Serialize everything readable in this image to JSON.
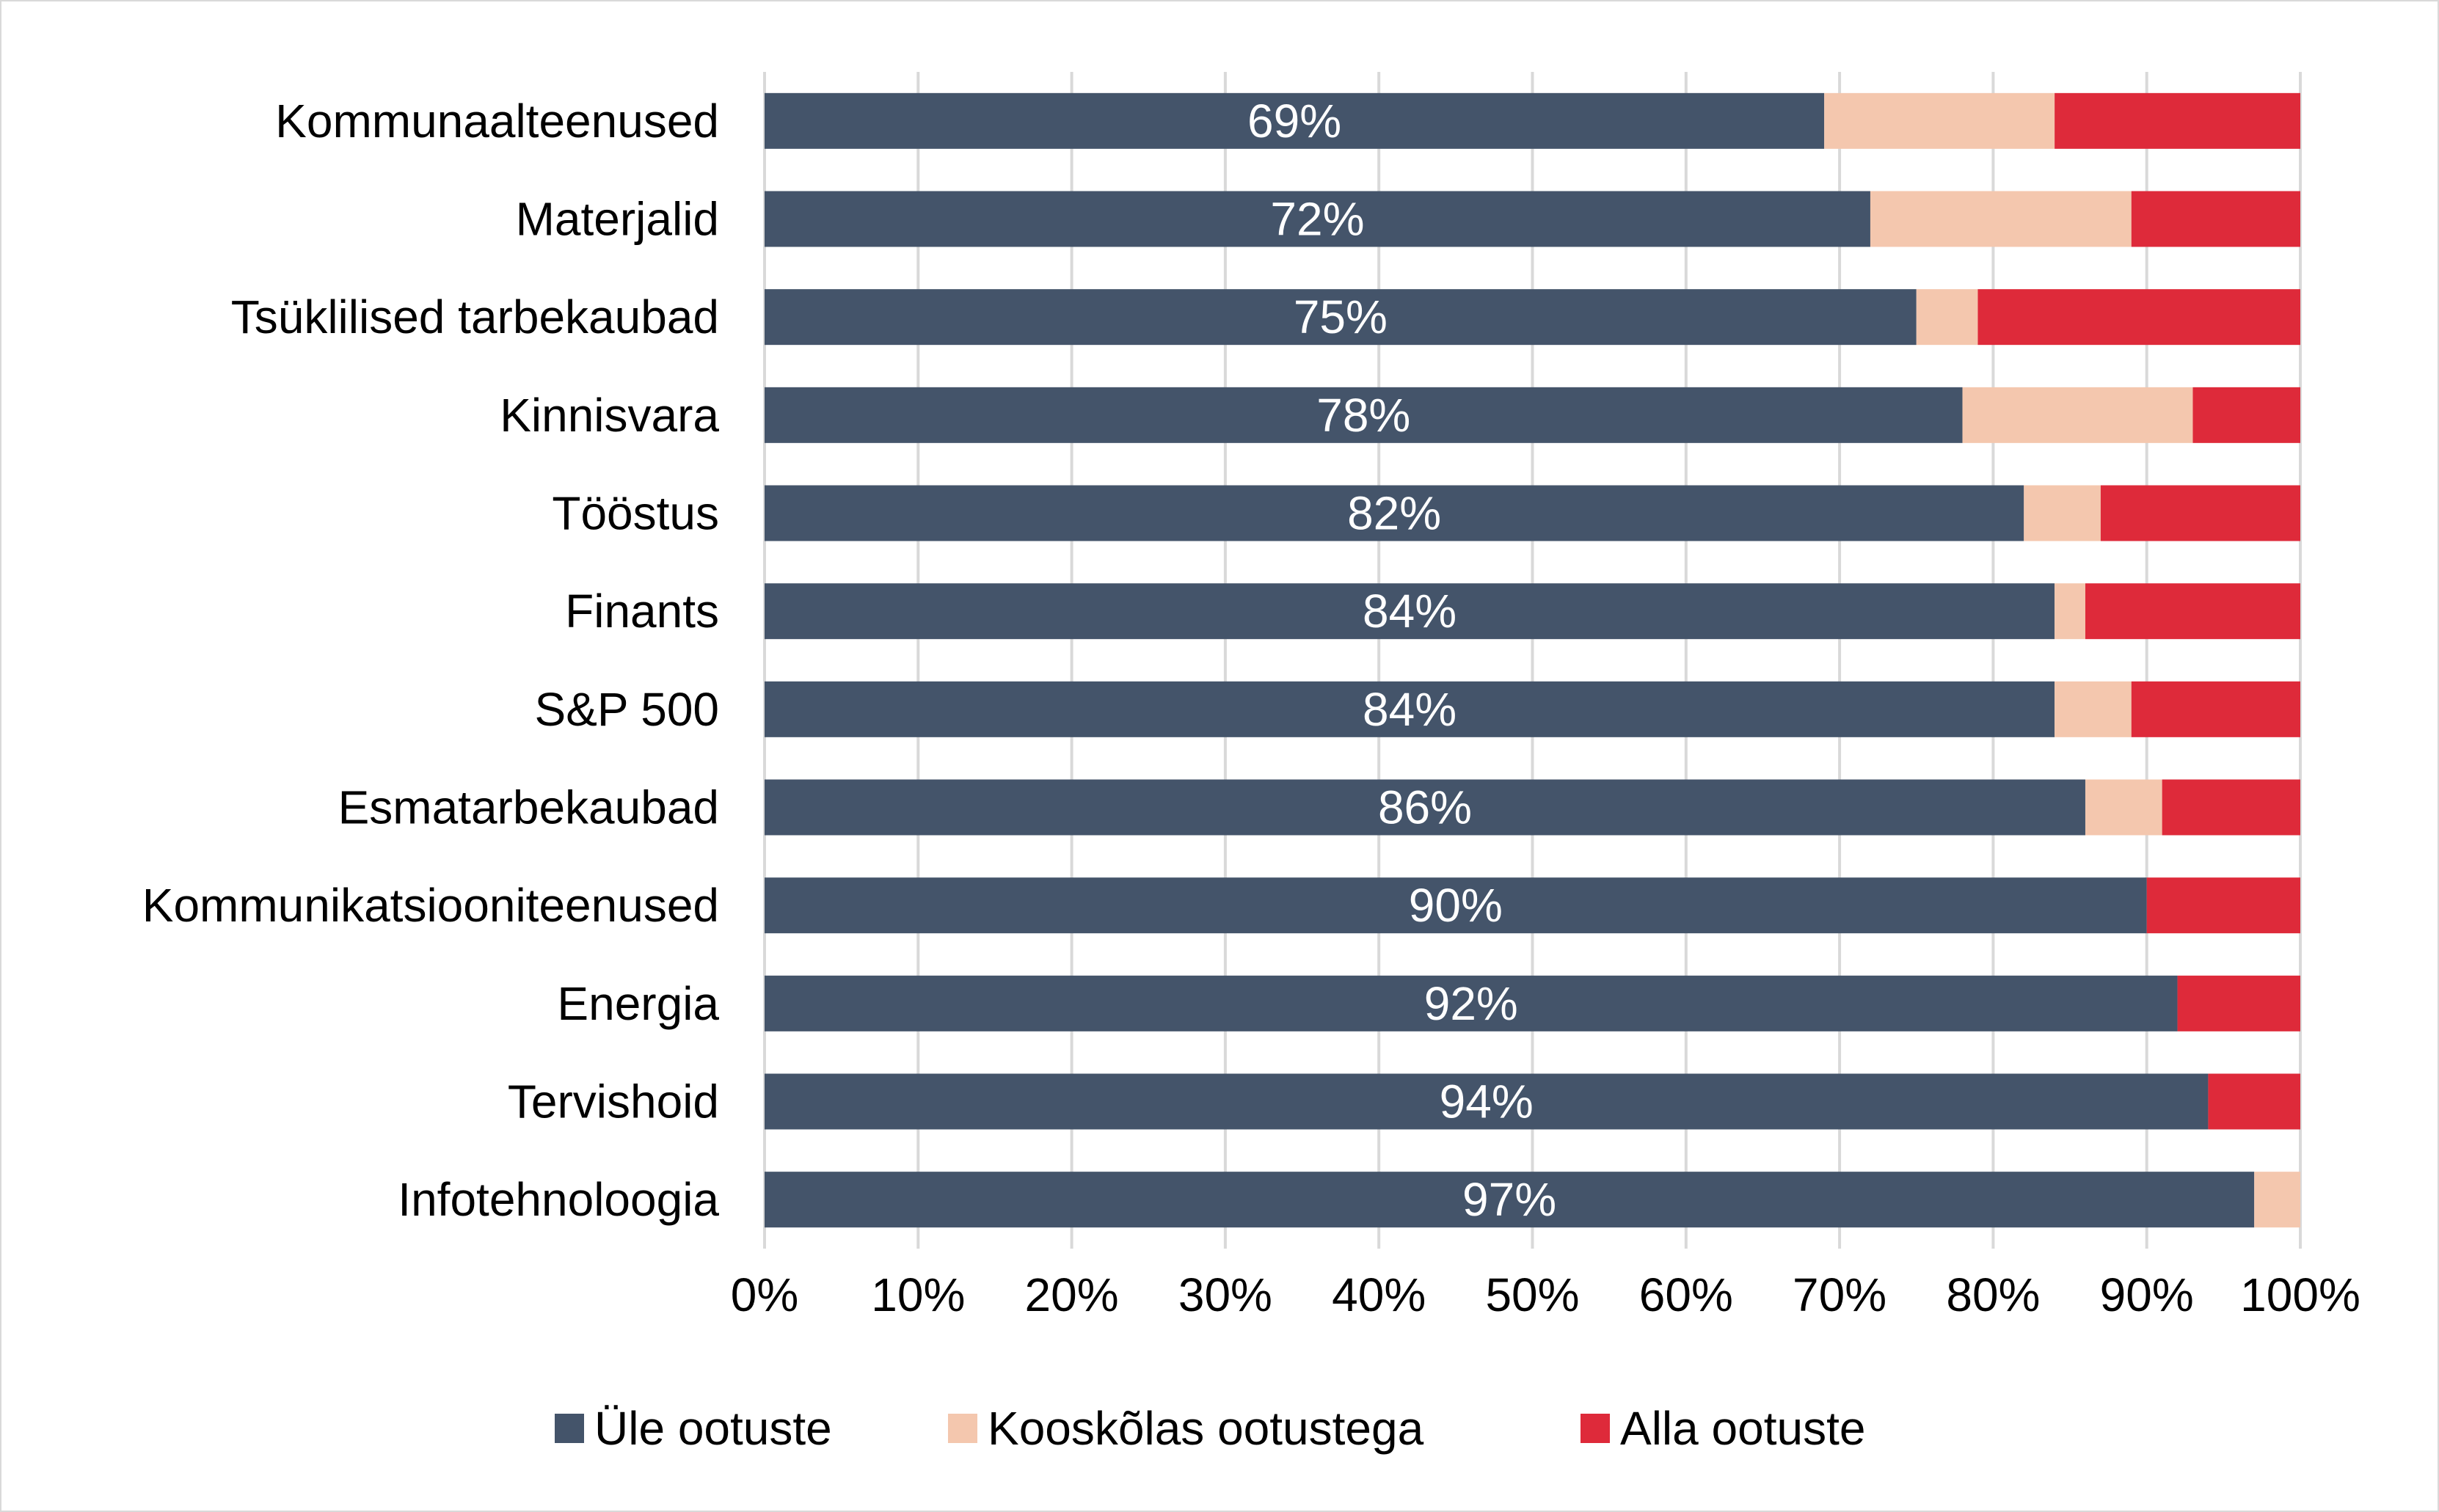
{
  "chart_data": {
    "type": "bar",
    "orientation": "horizontal",
    "stacked": true,
    "categories": [
      "Kommunaalteenused",
      "Materjalid",
      "Tsüklilised tarbekaubad",
      "Kinnisvara",
      "Tööstus",
      "Finants",
      "S&P 500",
      "Esmatarbekaubad",
      "Kommunikatsiooniteenused",
      "Energia",
      "Tervishoid",
      "Infotehnoloogia"
    ],
    "series": [
      {
        "name": "Üle ootuste",
        "color": "#44546a",
        "values": [
          69,
          72,
          75,
          78,
          82,
          84,
          84,
          86,
          90,
          92,
          94,
          97
        ],
        "data_labels": [
          "69%",
          "72%",
          "75%",
          "78%",
          "82%",
          "84%",
          "84%",
          "86%",
          "90%",
          "92%",
          "94%",
          "97%"
        ]
      },
      {
        "name": "Kooskõlas ootustega",
        "color": "#f4c7ae",
        "values": [
          15,
          17,
          4,
          15,
          5,
          2,
          5,
          5,
          0,
          0,
          0,
          3
        ]
      },
      {
        "name": "Alla ootuste",
        "color": "#de2a3a",
        "values": [
          16,
          11,
          21,
          7,
          13,
          14,
          11,
          9,
          10,
          8,
          6,
          0
        ]
      }
    ],
    "xlim": [
      0,
      100
    ],
    "xticks": [
      0,
      10,
      20,
      30,
      40,
      50,
      60,
      70,
      80,
      90,
      100
    ],
    "xtick_labels": [
      "0%",
      "10%",
      "20%",
      "30%",
      "40%",
      "50%",
      "60%",
      "70%",
      "80%",
      "90%",
      "100%"
    ],
    "grid": "vertical",
    "grid_color": "#d9d9d9",
    "legend_position": "bottom"
  }
}
